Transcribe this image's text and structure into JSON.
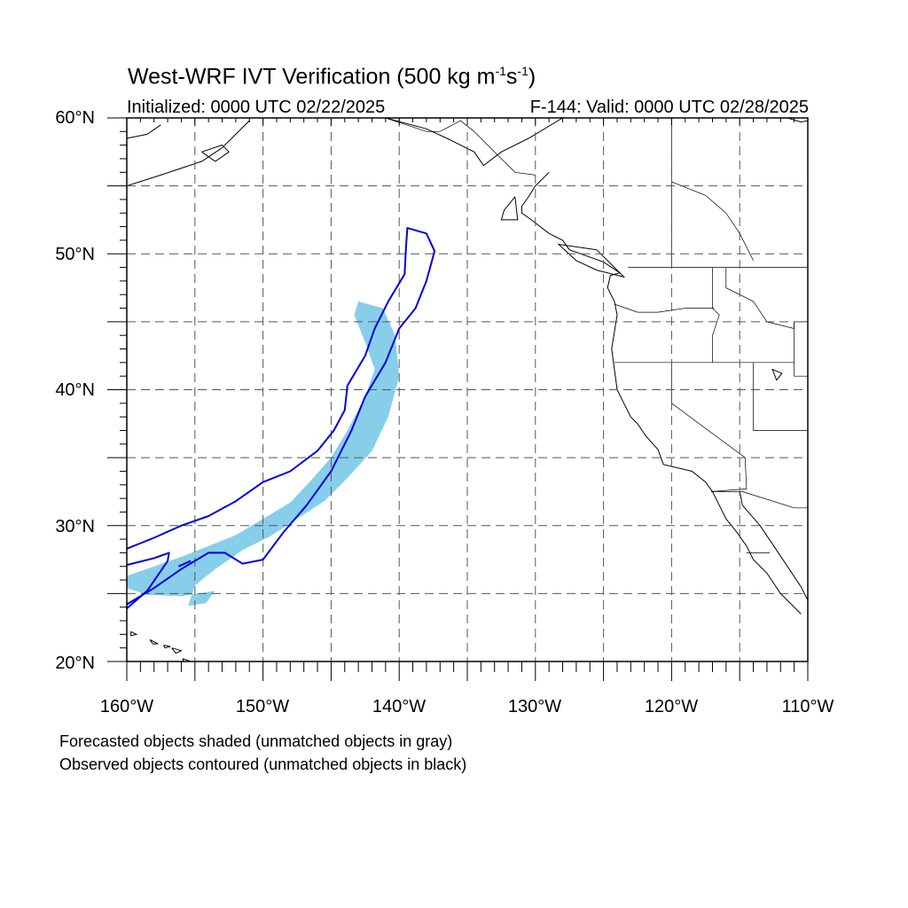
{
  "title": {
    "text": "West-WRF IVT Verification (500 kg m",
    "sup1": "-1",
    "mid": "s",
    "sup2": "-1",
    "close": ")"
  },
  "init_label": "Initialized: 0000 UTC 02/22/2025",
  "valid_label": "F-144: Valid: 0000 UTC 02/28/2025",
  "lat_ticks": [
    "60°N",
    "50°N",
    "40°N",
    "30°N",
    "20°N"
  ],
  "lon_ticks": [
    "160°W",
    "150°W",
    "140°W",
    "130°W",
    "120°W",
    "110°W"
  ],
  "captions": [
    "Forecasted objects shaded (unmatched objects in gray)",
    "Observed objects contoured (unmatched objects in black)"
  ],
  "colors": {
    "forecast_fill": "#87ceeb",
    "observed_contour": "#0000dd",
    "coastline": "#000000",
    "grid": "#555555"
  },
  "map_extent": {
    "lon": [
      -160,
      -110
    ],
    "lat": [
      20,
      60
    ]
  },
  "forecast_object": {
    "lonlat": [
      [
        -160.0,
        26.3
      ],
      [
        -158.0,
        27.0
      ],
      [
        -156.0,
        27.7
      ],
      [
        -154.0,
        28.5
      ],
      [
        -152.0,
        29.3
      ],
      [
        -150.0,
        30.5
      ],
      [
        -148.0,
        31.7
      ],
      [
        -146.5,
        33.3
      ],
      [
        -145.0,
        35.0
      ],
      [
        -143.8,
        37.0
      ],
      [
        -142.5,
        39.5
      ],
      [
        -141.8,
        41.5
      ],
      [
        -142.5,
        43.5
      ],
      [
        -143.3,
        45.5
      ],
      [
        -143.0,
        46.5
      ],
      [
        -141.2,
        46.0
      ],
      [
        -140.3,
        44.0
      ],
      [
        -140.0,
        41.0
      ],
      [
        -140.8,
        38.0
      ],
      [
        -142.0,
        35.5
      ],
      [
        -143.8,
        33.5
      ],
      [
        -145.5,
        31.8
      ],
      [
        -147.5,
        30.5
      ],
      [
        -149.5,
        29.2
      ],
      [
        -151.5,
        28.2
      ],
      [
        -153.5,
        26.8
      ],
      [
        -155.0,
        25.6
      ],
      [
        -155.5,
        24.1
      ],
      [
        -154.2,
        24.3
      ],
      [
        -153.5,
        25.2
      ],
      [
        -156.0,
        24.8
      ],
      [
        -158.5,
        24.9
      ],
      [
        -160.0,
        25.4
      ]
    ]
  },
  "observed_objects": [
    {
      "lonlat": [
        [
          -160.0,
          28.3
        ],
        [
          -158.0,
          29.1
        ],
        [
          -156.0,
          30.0
        ],
        [
          -154.0,
          30.7
        ],
        [
          -152.0,
          31.8
        ],
        [
          -150.0,
          33.2
        ],
        [
          -148.0,
          34.0
        ],
        [
          -146.0,
          35.5
        ],
        [
          -144.8,
          37.0
        ],
        [
          -144.0,
          38.5
        ],
        [
          -143.8,
          40.3
        ],
        [
          -142.5,
          42.5
        ],
        [
          -141.8,
          44.5
        ],
        [
          -140.8,
          46.5
        ],
        [
          -139.6,
          48.5
        ],
        [
          -139.5,
          50.5
        ],
        [
          -139.4,
          51.9
        ],
        [
          -138.0,
          51.5
        ],
        [
          -137.4,
          50.2
        ],
        [
          -138.0,
          48.0
        ],
        [
          -138.8,
          46.0
        ],
        [
          -140.0,
          44.5
        ],
        [
          -141.0,
          42.0
        ],
        [
          -142.5,
          39.5
        ],
        [
          -143.5,
          37.0
        ],
        [
          -145.0,
          34.0
        ],
        [
          -146.8,
          31.5
        ],
        [
          -148.5,
          29.5
        ],
        [
          -150.0,
          27.5
        ],
        [
          -151.5,
          27.2
        ],
        [
          -152.8,
          28.0
        ],
        [
          -154.0,
          28.0
        ],
        [
          -156.0,
          26.8
        ],
        [
          -158.0,
          25.4
        ],
        [
          -160.0,
          24.2
        ]
      ]
    },
    {
      "lonlat": [
        [
          -160.0,
          27.1
        ],
        [
          -158.0,
          27.6
        ],
        [
          -156.9,
          28.0
        ],
        [
          -157.0,
          27.4
        ],
        [
          -158.5,
          25.2
        ],
        [
          -160.0,
          23.9
        ]
      ]
    },
    {
      "lonlat": [
        [
          -156.2,
          27.0
        ],
        [
          -155.3,
          27.4
        ]
      ]
    }
  ],
  "coastlines": [
    [
      [
        -129.0,
        56.0
      ],
      [
        -130.0,
        55.0
      ],
      [
        -130.5,
        54.2
      ],
      [
        -131.0,
        53.5
      ],
      [
        -131.0,
        53.0
      ],
      [
        -130.3,
        52.5
      ],
      [
        -129.0,
        51.5
      ],
      [
        -128.0,
        51.0
      ],
      [
        -127.5,
        50.3
      ],
      [
        -125.0,
        49.4
      ],
      [
        -123.8,
        48.6
      ],
      [
        -124.5,
        48.4
      ],
      [
        -124.7,
        47.5
      ],
      [
        -124.2,
        46.5
      ],
      [
        -124.0,
        45.5
      ],
      [
        -124.4,
        43.0
      ],
      [
        -124.2,
        41.5
      ],
      [
        -124.0,
        40.0
      ],
      [
        -123.5,
        39.0
      ],
      [
        -123.0,
        38.0
      ],
      [
        -122.5,
        37.5
      ],
      [
        -121.9,
        36.6
      ],
      [
        -121.0,
        35.6
      ],
      [
        -120.6,
        34.5
      ],
      [
        -118.5,
        34.0
      ],
      [
        -117.5,
        33.2
      ],
      [
        -117.0,
        32.5
      ],
      [
        -116.5,
        31.5
      ],
      [
        -116.0,
        30.5
      ],
      [
        -115.2,
        29.5
      ],
      [
        -114.5,
        28.5
      ],
      [
        -114.0,
        27.5
      ],
      [
        -113.0,
        26.5
      ],
      [
        -112.0,
        25.0
      ],
      [
        -110.5,
        23.5
      ]
    ],
    [
      [
        -114.8,
        31.5
      ],
      [
        -113.5,
        30.0
      ],
      [
        -112.5,
        28.5
      ],
      [
        -111.5,
        27.0
      ],
      [
        -110.5,
        25.5
      ],
      [
        -110.0,
        24.5
      ]
    ],
    [
      [
        -115.0,
        32.5
      ],
      [
        -114.8,
        31.5
      ]
    ],
    [
      [
        -128.0,
        60.0
      ],
      [
        -130.5,
        58.5
      ],
      [
        -132.5,
        57.5
      ],
      [
        -133.8,
        56.5
      ],
      [
        -134.5,
        57.5
      ],
      [
        -136.5,
        58.5
      ],
      [
        -138.0,
        59.2
      ],
      [
        -141.0,
        60.0
      ]
    ],
    [
      [
        -131.5,
        54.2
      ],
      [
        -132.3,
        53.2
      ],
      [
        -132.5,
        52.5
      ],
      [
        -131.3,
        52.5
      ],
      [
        -131.5,
        54.2
      ]
    ],
    [
      [
        -125.5,
        50.3
      ],
      [
        -128.3,
        50.7
      ],
      [
        -127.0,
        49.5
      ],
      [
        -125.5,
        48.8
      ],
      [
        -123.5,
        48.3
      ],
      [
        -124.5,
        49.3
      ],
      [
        -125.5,
        50.3
      ]
    ],
    [
      [
        -160.0,
        55.0
      ],
      [
        -157.5,
        55.8
      ],
      [
        -154.5,
        56.8
      ],
      [
        -153.0,
        57.8
      ],
      [
        -152.0,
        58.8
      ],
      [
        -151.0,
        59.8
      ]
    ],
    [
      [
        -160.0,
        58.5
      ],
      [
        -158.5,
        58.8
      ],
      [
        -157.5,
        59.5
      ]
    ],
    [
      [
        -154.5,
        57.5
      ],
      [
        -153.0,
        58.0
      ],
      [
        -152.5,
        57.5
      ],
      [
        -153.5,
        56.8
      ],
      [
        -154.5,
        57.5
      ]
    ],
    [
      [
        -159.7,
        22.2
      ],
      [
        -159.3,
        22.0
      ],
      [
        -159.7,
        21.9
      ],
      [
        -159.7,
        22.2
      ]
    ],
    [
      [
        -158.3,
        21.6
      ],
      [
        -157.7,
        21.3
      ],
      [
        -158.1,
        21.3
      ],
      [
        -158.3,
        21.6
      ]
    ],
    [
      [
        -157.3,
        21.2
      ],
      [
        -156.8,
        21.1
      ],
      [
        -157.2,
        21.0
      ],
      [
        -157.3,
        21.2
      ]
    ],
    [
      [
        -156.7,
        21.0
      ],
      [
        -156.0,
        20.8
      ],
      [
        -156.4,
        20.6
      ],
      [
        -156.7,
        21.0
      ]
    ],
    [
      [
        -155.9,
        20.2
      ],
      [
        -155.0,
        19.9
      ],
      [
        -154.8,
        19.5
      ],
      [
        -155.5,
        19.0
      ],
      [
        -155.9,
        20.2
      ]
    ],
    [
      [
        -111.5,
        60.0
      ],
      [
        -110.5,
        59.7
      ],
      [
        -110.0,
        59.8
      ]
    ]
  ],
  "borders": [
    [
      [
        -123.2,
        49.0
      ],
      [
        -110.0,
        49.0
      ]
    ],
    [
      [
        -124.2,
        46.3
      ],
      [
        -122.5,
        45.7
      ],
      [
        -121.0,
        45.7
      ],
      [
        -119.0,
        46.0
      ],
      [
        -116.9,
        46.0
      ]
    ],
    [
      [
        -117.0,
        49.0
      ],
      [
        -117.0,
        46.0
      ],
      [
        -116.5,
        45.5
      ],
      [
        -117.0,
        44.0
      ],
      [
        -117.0,
        42.0
      ]
    ],
    [
      [
        -124.2,
        42.0
      ],
      [
        -111.0,
        42.0
      ]
    ],
    [
      [
        -120.0,
        42.0
      ],
      [
        -120.0,
        39.0
      ],
      [
        -114.6,
        35.0
      ],
      [
        -114.5,
        32.7
      ],
      [
        -117.1,
        32.5
      ]
    ],
    [
      [
        -114.0,
        42.0
      ],
      [
        -114.0,
        37.0
      ],
      [
        -110.0,
        37.0
      ]
    ],
    [
      [
        -116.0,
        49.0
      ],
      [
        -116.0,
        47.5
      ],
      [
        -114.0,
        46.5
      ],
      [
        -113.0,
        45.0
      ],
      [
        -111.0,
        44.5
      ],
      [
        -111.0,
        45.0
      ],
      [
        -110.0,
        45.0
      ]
    ],
    [
      [
        -111.0,
        45.0
      ],
      [
        -111.0,
        41.0
      ],
      [
        -110.0,
        41.0
      ]
    ],
    [
      [
        -117.1,
        32.5
      ],
      [
        -114.8,
        32.5
      ],
      [
        -111.0,
        31.3
      ],
      [
        -110.0,
        31.3
      ]
    ],
    [
      [
        -120.0,
        60.0
      ],
      [
        -120.0,
        49.0
      ]
    ],
    [
      [
        -123.5,
        60.0
      ],
      [
        -121.0,
        60.0
      ]
    ],
    [
      [
        -141.0,
        60.0
      ],
      [
        -139.5,
        59.5
      ],
      [
        -138.0,
        59.0
      ],
      [
        -137.0,
        59.0
      ],
      [
        -135.5,
        59.8
      ],
      [
        -134.5,
        59.0
      ],
      [
        -133.5,
        58.0
      ],
      [
        -131.5,
        56.0
      ],
      [
        -130.0,
        55.8
      ]
    ],
    [
      [
        -120.0,
        55.3
      ],
      [
        -117.5,
        54.3
      ],
      [
        -116.0,
        53.0
      ],
      [
        -115.0,
        51.5
      ],
      [
        -114.0,
        49.5
      ]
    ],
    [
      [
        -114.5,
        28.0
      ],
      [
        -112.8,
        28.0
      ]
    ]
  ],
  "lakes": [
    [
      [
        -111.9,
        41.2
      ],
      [
        -112.6,
        41.5
      ],
      [
        -112.3,
        40.7
      ],
      [
        -111.9,
        41.2
      ]
    ]
  ]
}
